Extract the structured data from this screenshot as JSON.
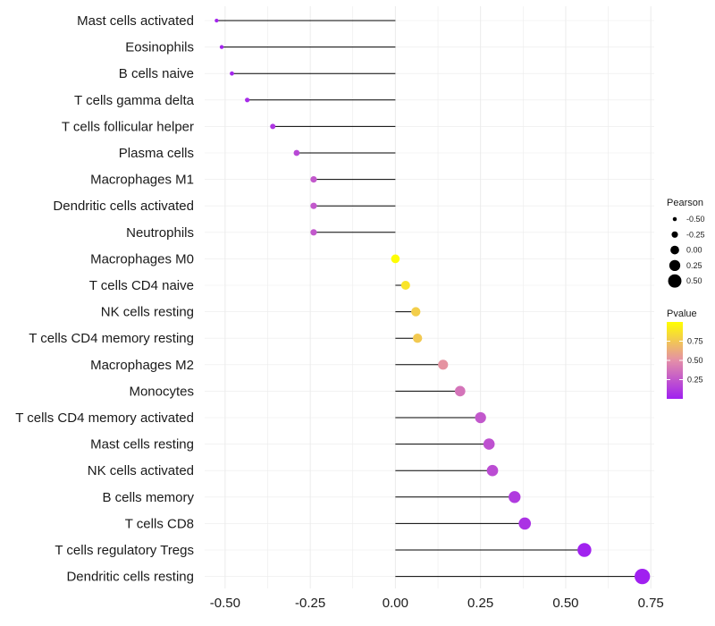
{
  "chart_data": {
    "type": "lollipop",
    "title": "",
    "xlabel": "",
    "ylabel": "",
    "xlim": [
      -0.56,
      0.76
    ],
    "xticks": [
      -0.5,
      -0.25,
      0.0,
      0.25,
      0.5,
      0.75
    ],
    "xtick_labels": [
      "-0.50",
      "-0.25",
      "0.00",
      "0.25",
      "0.50",
      "0.75"
    ],
    "grid": true,
    "legend_position": "right",
    "points": [
      {
        "category": "Mast cells activated",
        "pearson": -0.525,
        "pvalue": 0.02
      },
      {
        "category": "Eosinophils",
        "pearson": -0.51,
        "pvalue": 0.02
      },
      {
        "category": "B cells naive",
        "pearson": -0.48,
        "pvalue": 0.03
      },
      {
        "category": "T cells gamma delta",
        "pearson": -0.435,
        "pvalue": 0.05
      },
      {
        "category": "T cells follicular helper",
        "pearson": -0.36,
        "pvalue": 0.1
      },
      {
        "category": "Plasma cells",
        "pearson": -0.29,
        "pvalue": 0.18
      },
      {
        "category": "Macrophages M1",
        "pearson": -0.24,
        "pvalue": 0.25
      },
      {
        "category": "Dendritic cells activated",
        "pearson": -0.24,
        "pvalue": 0.25
      },
      {
        "category": "Neutrophils",
        "pearson": -0.24,
        "pvalue": 0.25
      },
      {
        "category": "Macrophages M0",
        "pearson": 0.0,
        "pvalue": 0.99
      },
      {
        "category": "T cells CD4 naive",
        "pearson": 0.03,
        "pvalue": 0.88
      },
      {
        "category": "NK cells resting",
        "pearson": 0.06,
        "pvalue": 0.78
      },
      {
        "category": "T cells CD4 memory resting",
        "pearson": 0.065,
        "pvalue": 0.76
      },
      {
        "category": "Macrophages M2",
        "pearson": 0.14,
        "pvalue": 0.52
      },
      {
        "category": "Monocytes",
        "pearson": 0.19,
        "pvalue": 0.38
      },
      {
        "category": "T cells CD4 memory activated",
        "pearson": 0.25,
        "pvalue": 0.25
      },
      {
        "category": "Mast cells resting",
        "pearson": 0.275,
        "pvalue": 0.22
      },
      {
        "category": "NK cells activated",
        "pearson": 0.285,
        "pvalue": 0.2
      },
      {
        "category": "B cells memory",
        "pearson": 0.35,
        "pvalue": 0.12
      },
      {
        "category": "T cells CD8",
        "pearson": 0.38,
        "pvalue": 0.08
      },
      {
        "category": "T cells regulatory  Tregs",
        "pearson": 0.555,
        "pvalue": 0.01
      },
      {
        "category": "Dendritic cells resting",
        "pearson": 0.725,
        "pvalue": 0.001
      }
    ],
    "legend_size": {
      "title": "Pearson",
      "labels": [
        "-0.50",
        "-0.25",
        "0.00",
        "0.25",
        "0.50"
      ],
      "values": [
        -0.5,
        -0.25,
        0.0,
        0.25,
        0.5
      ]
    },
    "legend_color": {
      "title": "Pvalue",
      "labels": [
        "0.75",
        "0.50",
        "0.25"
      ],
      "values": [
        0.75,
        0.5,
        0.25
      ],
      "range": [
        0.0,
        1.0
      ]
    },
    "colors": {
      "low": "#a020f0",
      "mid": "#e48fa8",
      "high": "#ffff00",
      "segment": "#000000",
      "grid": "#ebebeb"
    }
  }
}
